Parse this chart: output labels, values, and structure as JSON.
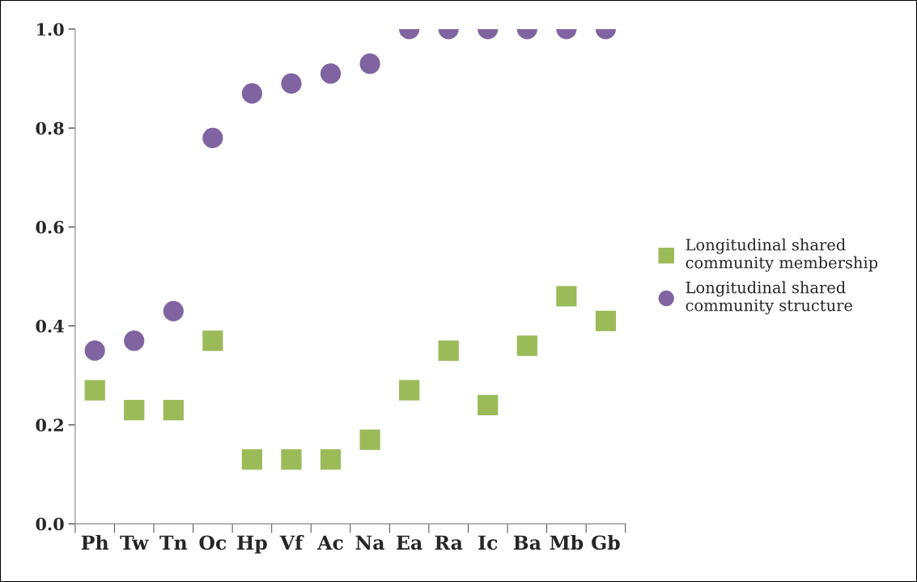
{
  "chart_data": {
    "type": "scatter",
    "categories": [
      "Ph",
      "Tw",
      "Tn",
      "Oc",
      "Hp",
      "Vf",
      "Ac",
      "Na",
      "Ea",
      "Ra",
      "Ic",
      "Ba",
      "Mb",
      "Gb"
    ],
    "series": [
      {
        "name": "Longitudinal shared community membership",
        "color": "#9bbb59",
        "marker": "square",
        "values": [
          0.27,
          0.23,
          0.23,
          0.37,
          0.13,
          0.13,
          0.13,
          0.17,
          0.27,
          0.35,
          0.24,
          0.36,
          0.46,
          0.41
        ]
      },
      {
        "name": "Longitudinal shared community structure",
        "color": "#8064a2",
        "marker": "circle",
        "values": [
          0.35,
          0.37,
          0.43,
          0.78,
          0.87,
          0.89,
          0.91,
          0.93,
          1.0,
          1.0,
          1.0,
          1.0,
          1.0,
          1.0
        ]
      }
    ],
    "ylim": [
      0,
      1
    ],
    "yticks": [
      {
        "value": 0,
        "label": "0.0"
      },
      {
        "value": 0.2,
        "label": "0.2"
      },
      {
        "value": 0.4,
        "label": "0.4"
      },
      {
        "value": 0.6,
        "label": "0.6"
      },
      {
        "value": 0.8,
        "label": "0.8"
      },
      {
        "value": 1,
        "label": "1.0"
      }
    ],
    "grid": false,
    "legend": "right"
  }
}
